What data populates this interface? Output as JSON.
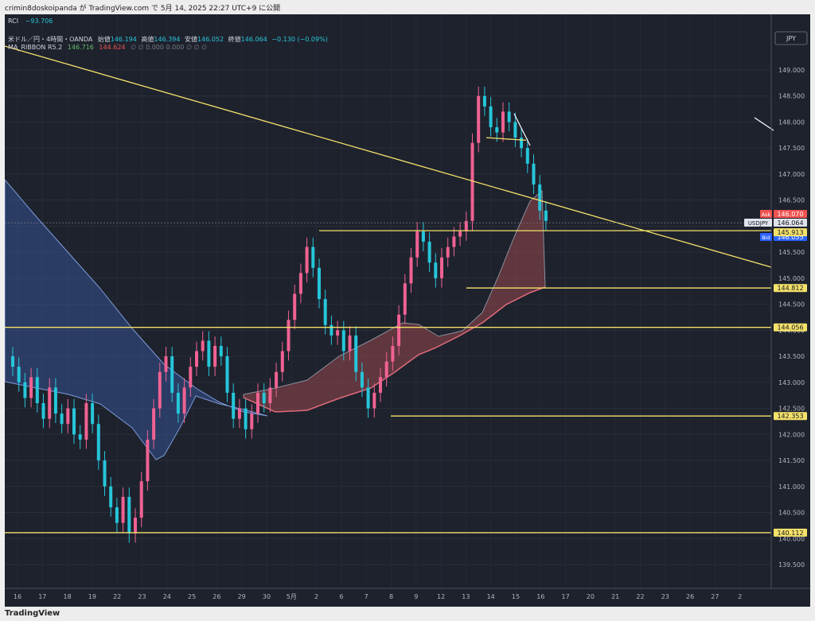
{
  "header": {
    "publish_text": "crimin8doskoipanda が TradingView.com で 5月 14, 2025 22:27 UTC+9 に公開"
  },
  "footer": {
    "brand": "TradingView"
  },
  "panel": {
    "rci_label": "RCI",
    "rci_value": "−93.706",
    "symbol_line": "米ドル／円・4時間・OANDA",
    "o_label": "始値",
    "o_value": "146.194",
    "h_label": "高値",
    "h_value": "146.394",
    "l_label": "安値",
    "l_value": "146.052",
    "c_label": "終値",
    "c_value": "146.064",
    "change": "−0.130 (−0.09%)",
    "ribbon_label": "MA_RIBBON R5.2",
    "ribbon_v1": "146.716",
    "ribbon_v2": "144.624",
    "ribbon_rest": "∅  ∅  0.000  0.000  ∅  ∅  ∅"
  },
  "currency_button": "JPY",
  "price_scale": [
    "149.000",
    "148.500",
    "148.000",
    "147.500",
    "147.000",
    "146.500",
    "146.000",
    "145.500",
    "145.000",
    "144.500",
    "144.000",
    "143.500",
    "143.000",
    "142.500",
    "142.000",
    "141.500",
    "141.000",
    "140.500",
    "140.000",
    "139.500"
  ],
  "price_tags": {
    "ask_label": "Ask",
    "ask_value": "146.070",
    "symbol": "USDJPY",
    "symbol_value": "146.064",
    "countdown": "03:32:12",
    "bid_label": "Bid",
    "bid_value": "146.055",
    "level1": "145.913",
    "level2": "144.812",
    "level3": "144.056",
    "level4": "142.353",
    "level5": "140.112"
  },
  "time_axis": [
    "16",
    "17",
    "18",
    "19",
    "22",
    "23",
    "24",
    "25",
    "26",
    "29",
    "30",
    "5月",
    "2",
    "6",
    "7",
    "8",
    "9",
    "12",
    "13",
    "14",
    "15",
    "16",
    "17",
    "20",
    "21",
    "22",
    "23",
    "26",
    "27",
    "2"
  ],
  "colors": {
    "background": "#1e222d",
    "bull": "#f06292",
    "bear": "#26c6da",
    "level": "#f5e26a",
    "ribbon_blue": "#3a5da8",
    "ribbon_red": "#c2545a"
  }
}
